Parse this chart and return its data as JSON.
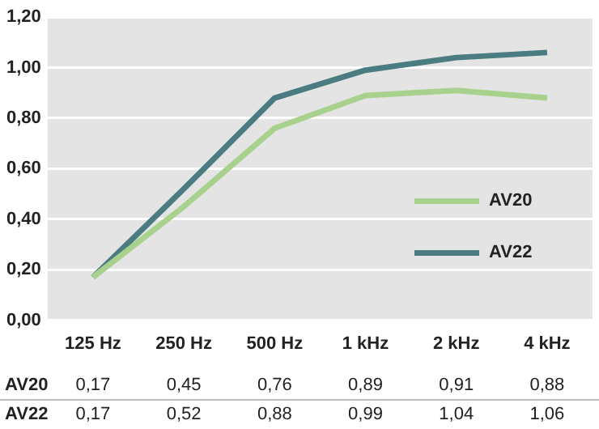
{
  "chart_data": {
    "type": "line",
    "categories": [
      "125 Hz",
      "250 Hz",
      "500 Hz",
      "1 kHz",
      "2 kHz",
      "4 kHz"
    ],
    "series": [
      {
        "name": "AV20",
        "color": "#a9d18e",
        "values": [
          0.17,
          0.45,
          0.76,
          0.89,
          0.91,
          0.88
        ],
        "value_labels": [
          "0,17",
          "0,45",
          "0,76",
          "0,89",
          "0,91",
          "0,88"
        ]
      },
      {
        "name": "AV22",
        "color": "#4a7c82",
        "values": [
          0.17,
          0.52,
          0.88,
          0.99,
          1.04,
          1.06
        ],
        "value_labels": [
          "0,17",
          "0,52",
          "0,88",
          "0,99",
          "1,04",
          "1,06"
        ]
      }
    ],
    "ylim": [
      0,
      1.2
    ],
    "yticks": [
      {
        "value": 0,
        "label": "0,00"
      },
      {
        "value": 0.2,
        "label": "0,20"
      },
      {
        "value": 0.4,
        "label": "0,40"
      },
      {
        "value": 0.6,
        "label": "0,60"
      },
      {
        "value": 0.8,
        "label": "0,80"
      },
      {
        "value": 1,
        "label": "1,00"
      },
      {
        "value": 1.2,
        "label": "1,20"
      }
    ],
    "grid": "y",
    "legend": "right",
    "marker": "none",
    "line_style": "solid"
  }
}
